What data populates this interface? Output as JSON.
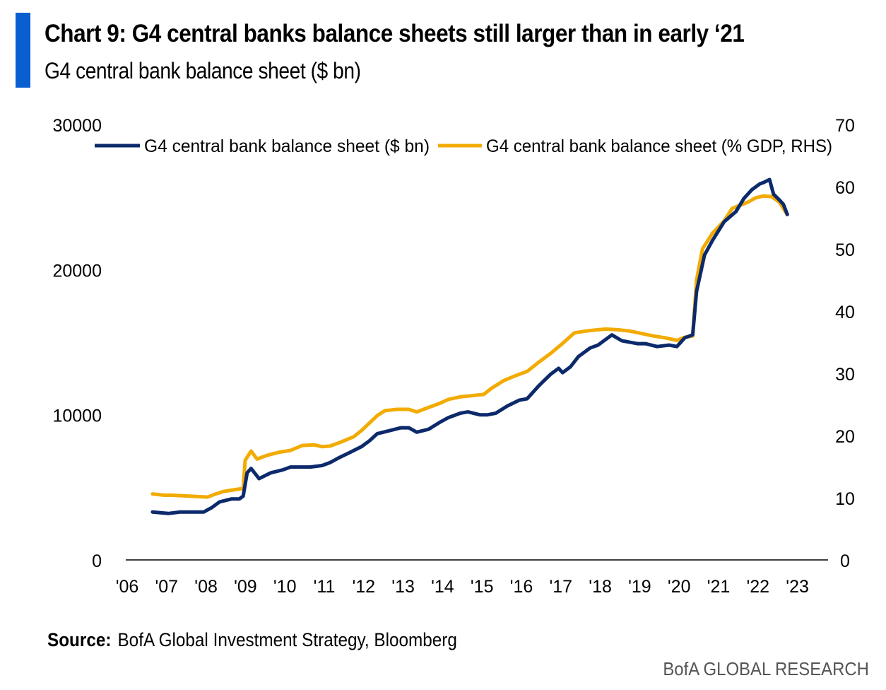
{
  "header": {
    "title": "Chart 9: G4 central banks balance sheets still larger than in early ‘21",
    "subtitle": "G4 central bank balance sheet ($ bn)"
  },
  "footer": {
    "source_label": "Source:",
    "source_text": "BofA Global Investment Strategy, Bloomberg",
    "brand": "BofA GLOBAL RESEARCH"
  },
  "chart_data": {
    "type": "line",
    "title": "Chart 9: G4 central banks balance sheets still larger than in early ‘21",
    "subtitle": "G4 central bank balance sheet ($ bn)",
    "x_ticks": [
      "'06",
      "'07",
      "'08",
      "'09",
      "'10",
      "'11",
      "'12",
      "'13",
      "'14",
      "'15",
      "'16",
      "'17",
      "'18",
      "'19",
      "'20",
      "'21",
      "'22",
      "'23"
    ],
    "xlim": [
      2006,
      2024
    ],
    "ylim_left": [
      0,
      30000
    ],
    "ylim_right": [
      0,
      70
    ],
    "y_ticks_left": [
      0,
      10000,
      20000,
      30000
    ],
    "y_ticks_right": [
      0,
      10,
      20,
      30,
      40,
      50,
      60,
      70
    ],
    "legend_position": "top",
    "grid": false,
    "series": [
      {
        "name": "G4 central bank balance sheet ($ bn)",
        "axis": "left",
        "color": "#0c2a6b",
        "points": [
          [
            2006.5,
            3300
          ],
          [
            2006.9,
            3200
          ],
          [
            2007.2,
            3300
          ],
          [
            2007.5,
            3300
          ],
          [
            2007.8,
            3300
          ],
          [
            2008.0,
            3600
          ],
          [
            2008.2,
            4000
          ],
          [
            2008.5,
            4200
          ],
          [
            2008.7,
            4200
          ],
          [
            2008.8,
            4400
          ],
          [
            2008.9,
            6000
          ],
          [
            2009.0,
            6300
          ],
          [
            2009.2,
            5600
          ],
          [
            2009.5,
            6000
          ],
          [
            2009.8,
            6200
          ],
          [
            2010.0,
            6400
          ],
          [
            2010.2,
            6400
          ],
          [
            2010.5,
            6400
          ],
          [
            2010.8,
            6500
          ],
          [
            2011.0,
            6700
          ],
          [
            2011.2,
            7000
          ],
          [
            2011.5,
            7400
          ],
          [
            2011.8,
            7800
          ],
          [
            2012.0,
            8200
          ],
          [
            2012.2,
            8700
          ],
          [
            2012.5,
            8900
          ],
          [
            2012.8,
            9100
          ],
          [
            2013.0,
            9100
          ],
          [
            2013.2,
            8800
          ],
          [
            2013.5,
            9000
          ],
          [
            2013.8,
            9500
          ],
          [
            2014.0,
            9800
          ],
          [
            2014.3,
            10100
          ],
          [
            2014.5,
            10200
          ],
          [
            2014.8,
            10000
          ],
          [
            2015.0,
            10000
          ],
          [
            2015.2,
            10100
          ],
          [
            2015.5,
            10600
          ],
          [
            2015.8,
            11000
          ],
          [
            2016.0,
            11100
          ],
          [
            2016.3,
            12000
          ],
          [
            2016.6,
            12800
          ],
          [
            2016.8,
            13200
          ],
          [
            2016.9,
            12900
          ],
          [
            2017.1,
            13300
          ],
          [
            2017.3,
            14000
          ],
          [
            2017.6,
            14600
          ],
          [
            2017.8,
            14800
          ],
          [
            2018.0,
            15200
          ],
          [
            2018.15,
            15500
          ],
          [
            2018.4,
            15100
          ],
          [
            2018.8,
            14900
          ],
          [
            2019.0,
            14900
          ],
          [
            2019.3,
            14700
          ],
          [
            2019.6,
            14800
          ],
          [
            2019.8,
            14700
          ],
          [
            2020.0,
            15300
          ],
          [
            2020.2,
            15500
          ],
          [
            2020.3,
            18500
          ],
          [
            2020.5,
            21000
          ],
          [
            2020.7,
            22000
          ],
          [
            2021.0,
            23300
          ],
          [
            2021.3,
            24000
          ],
          [
            2021.5,
            24900
          ],
          [
            2021.7,
            25500
          ],
          [
            2021.9,
            25900
          ],
          [
            2022.0,
            26000
          ],
          [
            2022.15,
            26200
          ],
          [
            2022.25,
            25200
          ],
          [
            2022.4,
            24800
          ],
          [
            2022.5,
            24500
          ],
          [
            2022.6,
            23800
          ]
        ]
      },
      {
        "name": "G4 central bank balance sheet (% GDP, RHS)",
        "axis": "right",
        "color": "#f2ab00",
        "points": [
          [
            2006.5,
            10.6
          ],
          [
            2006.8,
            10.4
          ],
          [
            2007.0,
            10.4
          ],
          [
            2007.3,
            10.3
          ],
          [
            2007.6,
            10.2
          ],
          [
            2007.9,
            10.1
          ],
          [
            2008.1,
            10.6
          ],
          [
            2008.3,
            11.0
          ],
          [
            2008.5,
            11.2
          ],
          [
            2008.8,
            11.5
          ],
          [
            2008.85,
            16.0
          ],
          [
            2009.0,
            17.5
          ],
          [
            2009.15,
            16.2
          ],
          [
            2009.4,
            16.8
          ],
          [
            2009.7,
            17.3
          ],
          [
            2010.0,
            17.6
          ],
          [
            2010.3,
            18.4
          ],
          [
            2010.6,
            18.5
          ],
          [
            2010.8,
            18.2
          ],
          [
            2011.0,
            18.3
          ],
          [
            2011.3,
            19.0
          ],
          [
            2011.6,
            19.8
          ],
          [
            2011.8,
            20.8
          ],
          [
            2012.0,
            22.0
          ],
          [
            2012.2,
            23.2
          ],
          [
            2012.4,
            24.0
          ],
          [
            2012.7,
            24.2
          ],
          [
            2013.0,
            24.2
          ],
          [
            2013.2,
            23.8
          ],
          [
            2013.5,
            24.5
          ],
          [
            2013.8,
            25.2
          ],
          [
            2014.0,
            25.8
          ],
          [
            2014.3,
            26.2
          ],
          [
            2014.6,
            26.4
          ],
          [
            2014.9,
            26.6
          ],
          [
            2015.1,
            27.6
          ],
          [
            2015.4,
            28.8
          ],
          [
            2015.7,
            29.6
          ],
          [
            2016.0,
            30.3
          ],
          [
            2016.3,
            31.8
          ],
          [
            2016.6,
            33.2
          ],
          [
            2016.9,
            34.8
          ],
          [
            2017.2,
            36.5
          ],
          [
            2017.5,
            36.8
          ],
          [
            2017.8,
            37.0
          ],
          [
            2018.0,
            37.1
          ],
          [
            2018.3,
            37.0
          ],
          [
            2018.6,
            36.8
          ],
          [
            2018.9,
            36.4
          ],
          [
            2019.2,
            36.0
          ],
          [
            2019.5,
            35.7
          ],
          [
            2019.8,
            35.3
          ],
          [
            2020.0,
            35.8
          ],
          [
            2020.2,
            36.0
          ],
          [
            2020.3,
            45.0
          ],
          [
            2020.45,
            50.0
          ],
          [
            2020.7,
            52.5
          ],
          [
            2021.0,
            54.5
          ],
          [
            2021.2,
            56.5
          ],
          [
            2021.4,
            57.0
          ],
          [
            2021.6,
            57.5
          ],
          [
            2021.8,
            58.2
          ],
          [
            2022.0,
            58.5
          ],
          [
            2022.2,
            58.4
          ],
          [
            2022.4,
            57.5
          ],
          [
            2022.6,
            55.5
          ]
        ]
      }
    ]
  }
}
